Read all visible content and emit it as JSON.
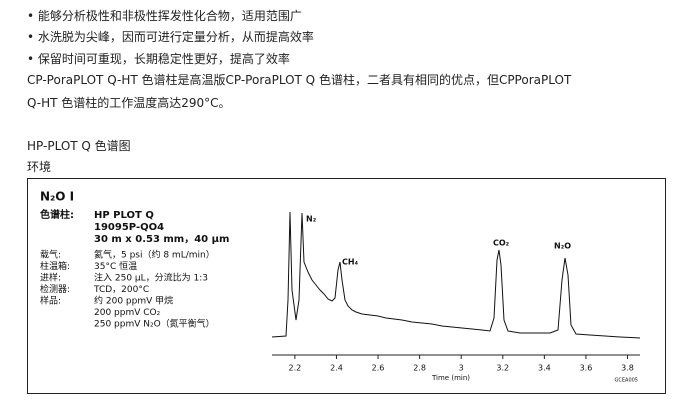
{
  "content": {
    "bullets": [
      "能够分析极性和非极性挥发性化合物，适用范围广",
      "水洗脱为尖峰，因而可进行定量分析，从而提高效率",
      "保留时间可重现，长期稳定性更好，提高了效率"
    ],
    "paragraph": [
      "CP-PoraPLOT Q-HT 色谱柱是高温版CP-PoraPLOT Q 色谱柱，二者具有相同的优点，但CPPoraPLOT",
      "Q-HT 色谱柱的工作温度高达290°C。"
    ],
    "heading": "HP-PLOT Q 色谱图",
    "subheading": "环境"
  },
  "chart_data": {
    "type": "line",
    "title": "N₂O I",
    "conditions": [
      {
        "label": "色谱柱:",
        "value": [
          "HP PLOT Q",
          "19095P-QO4",
          "30 m x 0.53 mm，40 µm"
        ]
      },
      {
        "label": "载气:",
        "value": [
          "氦气，5 psi（约 8 mL/min）"
        ]
      },
      {
        "label": "柱温箱:",
        "value": [
          "35°C 恒温"
        ]
      },
      {
        "label": "进样:",
        "value": [
          "注入 250 µL，分流比为 1:3"
        ]
      },
      {
        "label": "检测器:",
        "value": [
          "TCD，200°C"
        ]
      },
      {
        "label": "样品:",
        "value": [
          "约 200 ppmV 甲烷",
          "200 ppmV CO₂",
          "250 ppmV N₂O（氮平衡气）"
        ]
      }
    ],
    "peaks": [
      "N₂",
      "CH₄",
      "CO₂",
      "N₂O"
    ],
    "xlabel": "Time (min)",
    "xlim": [
      2.09,
      3.86
    ],
    "xticks": [
      2.2,
      2.4,
      2.6,
      2.8,
      3,
      3.2,
      3.4,
      3.6,
      3.8
    ],
    "code": "GCEA005"
  }
}
